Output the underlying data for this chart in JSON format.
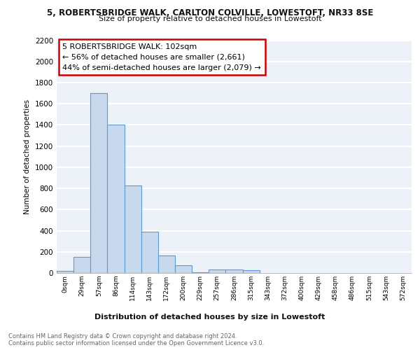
{
  "title_line1": "5, ROBERTSBRIDGE WALK, CARLTON COLVILLE, LOWESTOFT, NR33 8SE",
  "title_line2": "Size of property relative to detached houses in Lowestoft",
  "xlabel": "Distribution of detached houses by size in Lowestoft",
  "ylabel": "Number of detached properties",
  "bar_labels": [
    "0sqm",
    "29sqm",
    "57sqm",
    "86sqm",
    "114sqm",
    "143sqm",
    "172sqm",
    "200sqm",
    "229sqm",
    "257sqm",
    "286sqm",
    "315sqm",
    "343sqm",
    "372sqm",
    "400sqm",
    "429sqm",
    "458sqm",
    "486sqm",
    "515sqm",
    "543sqm",
    "572sqm"
  ],
  "bar_values": [
    20,
    155,
    1700,
    1400,
    830,
    390,
    165,
    70,
    5,
    30,
    30,
    25,
    0,
    0,
    0,
    0,
    0,
    0,
    0,
    0,
    0
  ],
  "bar_color": "#c8d9ee",
  "bar_edge_color": "#5b9bd5",
  "bar_edge_width": 0.8,
  "annotation_line1": "5 ROBERTSBRIDGE WALK: 102sqm",
  "annotation_line2": "← 56% of detached houses are smaller (2,661)",
  "annotation_line3": "44% of semi-detached houses are larger (2,079) →",
  "annotation_box_color": "#ffffff",
  "annotation_box_edge_color": "#cc0000",
  "background_color": "#edf2f9",
  "grid_color": "#ffffff",
  "footer_line1": "Contains HM Land Registry data © Crown copyright and database right 2024.",
  "footer_line2": "Contains public sector information licensed under the Open Government Licence v3.0.",
  "ylim": [
    0,
    2200
  ],
  "yticks": [
    0,
    200,
    400,
    600,
    800,
    1000,
    1200,
    1400,
    1600,
    1800,
    2000,
    2200
  ]
}
